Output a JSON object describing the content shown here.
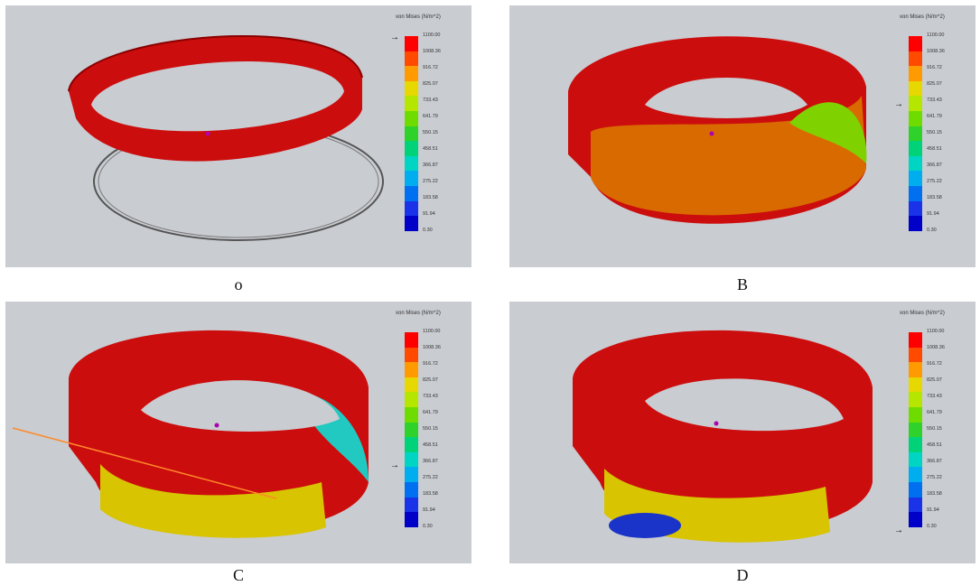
{
  "legend": {
    "title": "von Mises (N/m^2)",
    "ticks": [
      "1100.00",
      "1008.36",
      "916.72",
      "825.07",
      "733.43",
      "641.79",
      "550.15",
      "458.51",
      "366.87",
      "275.22",
      "183.58",
      "91.94",
      "0.30"
    ],
    "colors": [
      "#ff0000",
      "#ff4a00",
      "#ff9a00",
      "#e6d800",
      "#b5e600",
      "#6fdc00",
      "#2fd22a",
      "#00d27a",
      "#00d5c4",
      "#00aef0",
      "#0070f0",
      "#1a33e8",
      "#0000c8"
    ]
  },
  "panels": [
    {
      "id": "o",
      "caption": "o",
      "pointer_level": 1100.0
    },
    {
      "id": "B",
      "caption": "B",
      "pointer_level": 733.43
    },
    {
      "id": "C",
      "caption": "C",
      "pointer_level": 366.87
    },
    {
      "id": "D",
      "caption": "D",
      "pointer_level": 0.3
    }
  ],
  "colors": {
    "background": "#c9ccd1",
    "ring_red": "#cc0d0d",
    "arrow": "#6a64b5",
    "fixture": "#2f9a2f"
  }
}
